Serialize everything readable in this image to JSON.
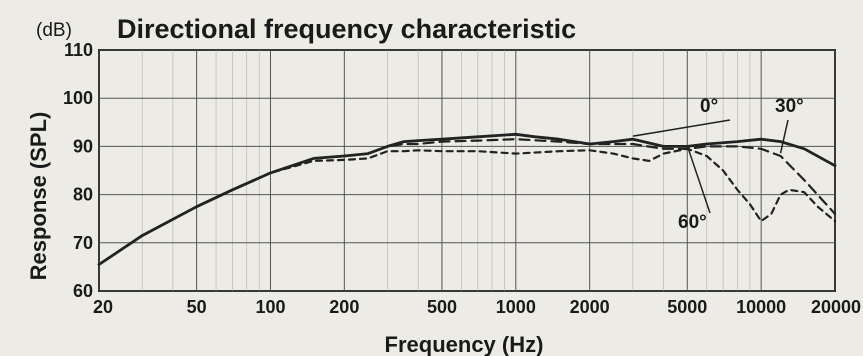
{
  "chart_data": {
    "type": "line",
    "title": "Directional frequency characteristic",
    "unit_label": "(dB)",
    "xlabel": "Frequency (Hz)",
    "ylabel": "Response (SPL)",
    "x_scale": "log",
    "xlim": [
      20,
      20000
    ],
    "ylim": [
      60,
      110
    ],
    "x_ticks": [
      20,
      50,
      100,
      200,
      500,
      1000,
      2000,
      5000,
      10000,
      20000
    ],
    "x_tick_labels": [
      "20",
      "50",
      "100",
      "200",
      "500",
      "1000",
      "2000",
      "5000",
      "10000",
      "20000"
    ],
    "y_ticks": [
      60,
      70,
      80,
      90,
      100,
      110
    ],
    "y_tick_labels": [
      "60",
      "70",
      "80",
      "90",
      "100",
      "110"
    ],
    "grid": true,
    "series": [
      {
        "name": "0°",
        "style": "solid",
        "x": [
          20,
          30,
          50,
          70,
          100,
          150,
          200,
          250,
          300,
          350,
          400,
          500,
          700,
          1000,
          1200,
          1500,
          2000,
          2500,
          3000,
          4000,
          5000,
          6000,
          8000,
          10000,
          12000,
          15000,
          20000
        ],
        "y": [
          65.5,
          71.5,
          77.5,
          81,
          84.5,
          87.5,
          88,
          88.5,
          90,
          91,
          91.2,
          91.5,
          92,
          92.5,
          92,
          91.5,
          90.5,
          91,
          91.5,
          90,
          90,
          90.5,
          91,
          91.5,
          91,
          89.5,
          86
        ]
      },
      {
        "name": "30°",
        "style": "dash",
        "x": [
          20,
          30,
          50,
          70,
          100,
          150,
          200,
          250,
          300,
          350,
          400,
          500,
          700,
          1000,
          1500,
          2000,
          2500,
          3000,
          4000,
          5000,
          6000,
          8000,
          10000,
          12000,
          15000,
          20000
        ],
        "y": [
          65.5,
          71.5,
          77.5,
          81,
          84.5,
          87.5,
          88,
          88.5,
          90,
          90.5,
          90.5,
          91,
          91.2,
          91.5,
          91,
          90.5,
          90.5,
          90.5,
          89.5,
          89.5,
          90,
          90,
          89.5,
          88,
          83,
          76
        ]
      },
      {
        "name": "60°",
        "style": "short-dash",
        "x": [
          20,
          30,
          50,
          70,
          100,
          150,
          200,
          250,
          300,
          350,
          400,
          500,
          700,
          1000,
          1500,
          2000,
          2500,
          3000,
          3500,
          4000,
          5000,
          6000,
          7000,
          8000,
          9000,
          10000,
          11000,
          12000,
          13000,
          15000,
          17000,
          20000
        ],
        "y": [
          65.5,
          71.5,
          77.5,
          81,
          84.5,
          87,
          87.2,
          87.5,
          89,
          89,
          89.2,
          89,
          89,
          88.5,
          89,
          89.2,
          88.5,
          87.5,
          87,
          88.5,
          89.5,
          88,
          85,
          81,
          78,
          74.5,
          76,
          80,
          81,
          80.5,
          77.5,
          74.5
        ]
      }
    ],
    "annotations": [
      {
        "text": "0°",
        "points_to": "0°"
      },
      {
        "text": "30°",
        "points_to": "30°"
      },
      {
        "text": "60°",
        "points_to": "60°"
      }
    ]
  }
}
